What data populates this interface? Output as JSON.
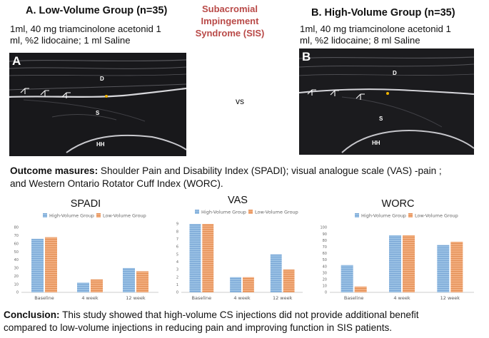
{
  "center_title": [
    "Subacromial",
    "Impingement",
    "Syndrome (SIS)"
  ],
  "vs": "vs",
  "group_a": {
    "title": "A. Low-Volume Group (n=35)",
    "desc": [
      "1ml, 40 mg triamcinolone acetonid 1",
      "ml, %2 lidocaine; 1 ml Saline"
    ],
    "panel_letter": "A",
    "labels": {
      "d": "D",
      "s": "S",
      "hh": "HH"
    }
  },
  "group_b": {
    "title": "B. High-Volume Group (n=35)",
    "desc": [
      "1ml, 40 mg triamcinolone acetonid 1",
      "ml, %2 lidocaine; 8 ml Saline"
    ],
    "panel_letter": "B",
    "labels": {
      "d": "D",
      "s": "S",
      "hh": "HH"
    }
  },
  "outcome": {
    "label": "Outcome masures:",
    "text": " Shoulder Pain and Disability Index (SPADI); visual analogue scale (VAS) -pain ;",
    "text2": "and Western Ontario Rotator Cuff Index (WORC)."
  },
  "colors": {
    "high": "#9dc3e6",
    "high_stripe": "#7aa7d6",
    "low": "#f4b183",
    "low_stripe": "#e38f56"
  },
  "chart_data": [
    {
      "type": "bar",
      "title": "SPADI",
      "categories": [
        "Baseline",
        "4 week",
        "12 week"
      ],
      "series": [
        {
          "name": "High-Volume Group",
          "values": [
            66,
            12,
            30
          ]
        },
        {
          "name": "Low-Volume Group",
          "values": [
            68,
            16,
            26
          ]
        }
      ],
      "ylim": [
        0,
        80
      ],
      "yticks": [
        0,
        10,
        20,
        30,
        40,
        50,
        60,
        70,
        80
      ]
    },
    {
      "type": "bar",
      "title": "VAS",
      "categories": [
        "Baseline",
        "4 week",
        "12 week"
      ],
      "series": [
        {
          "name": "High-Volume Group",
          "values": [
            9,
            2,
            5
          ]
        },
        {
          "name": "Low-Volume Group",
          "values": [
            9,
            2,
            3
          ]
        }
      ],
      "ylim": [
        0,
        9
      ],
      "yticks": [
        0,
        1,
        2,
        3,
        4,
        5,
        6,
        7,
        8,
        9
      ]
    },
    {
      "type": "bar",
      "title": "WORC",
      "categories": [
        "Baseline",
        "4 week",
        "12 week"
      ],
      "series": [
        {
          "name": "High-Volume Group",
          "values": [
            42,
            88,
            73
          ]
        },
        {
          "name": "Low-Volume Group",
          "values": [
            9,
            88,
            78
          ]
        }
      ],
      "ylim": [
        0,
        100
      ],
      "yticks": [
        0,
        10,
        20,
        30,
        40,
        50,
        60,
        70,
        80,
        90,
        100
      ]
    }
  ],
  "conclusion": {
    "label": "Conclusion:",
    "text": " This study showed that high-volume CS injections did not provide additional benefit",
    "text2": "compared to low-volume injections in reducing pain and improving function in SIS patients."
  }
}
